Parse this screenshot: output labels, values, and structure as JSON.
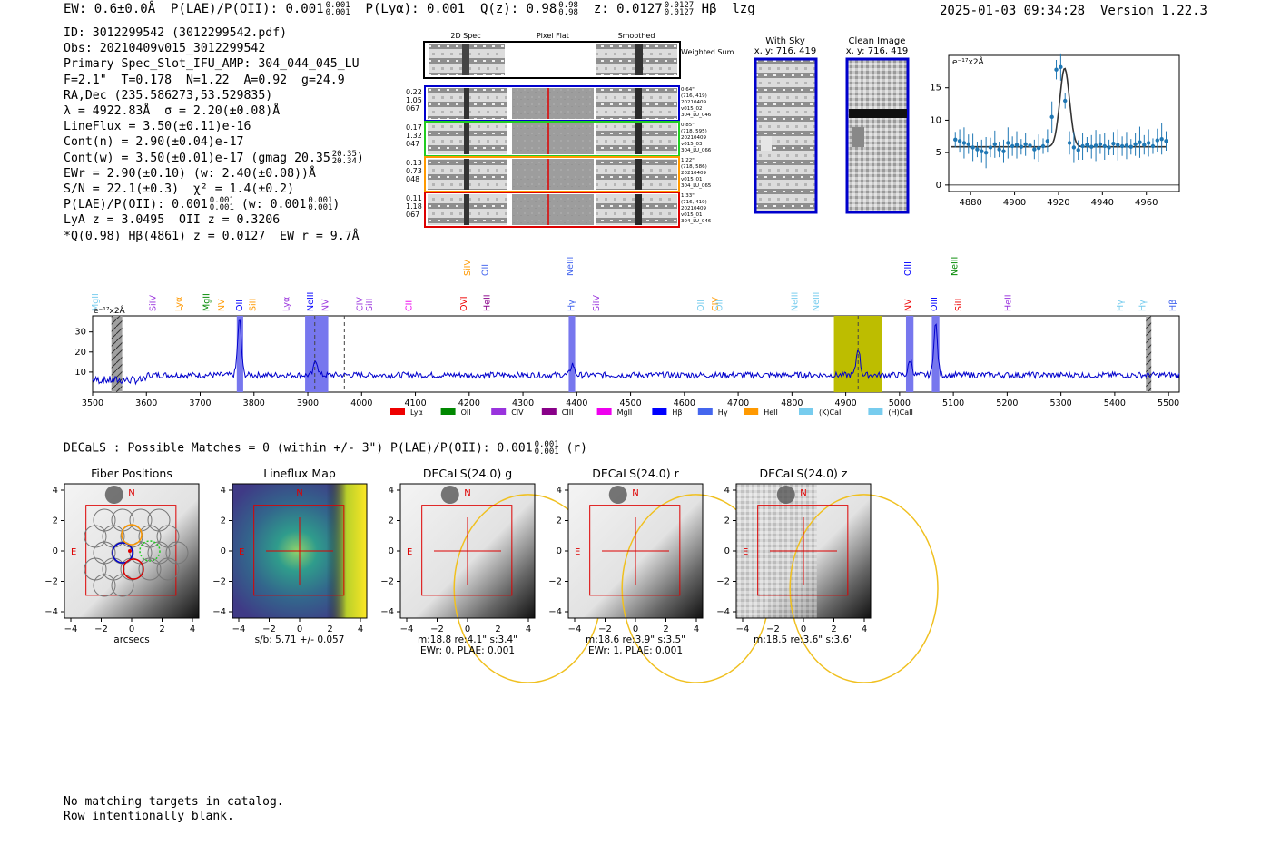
{
  "header": {
    "ew": "EW: 0.6±0.0Å",
    "plae_label": "P(LAE)/P(OII): 0.001",
    "plae_hi": "0.001",
    "plae_lo": "0.001",
    "plya": "P(Lyα): 0.001",
    "qz_label": "Q(z): 0.98",
    "qz_hi": "0.98",
    "qz_lo": "0.98",
    "z_label": "z: 0.0127",
    "z_hi": "0.0127",
    "z_lo": "0.0127",
    "line_name": "Hβ",
    "flag": "lzg",
    "timestamp": "2025-01-03 09:34:28",
    "version": "Version 1.22.3"
  },
  "info": {
    "id": "ID: 3012299542 (3012299542.pdf)",
    "obs": "Obs: 20210409v015_3012299542",
    "primary": "Primary Spec_Slot_IFU_AMP: 304_044_045_LU",
    "fwhm": "F=2.1\"  T=0.178  N=1.22  A=0.92  g=24.9",
    "radec": "RA,Dec (235.586273,53.529835)",
    "lambda": "λ = 4922.83Å  σ = 2.20(±0.08)Å",
    "lineflux": "LineFlux = 3.50(±0.11)e-16",
    "contn": "Cont(n) = 2.90(±0.04)e-17",
    "contw": "Cont(w) = 3.50(±0.01)e-17 (gmag 20.35",
    "contw_hi": "20.35",
    "contw_lo": "20.34",
    "contw_close": ")",
    "ewr": "EWr = 2.90(±0.10) (w: 2.40(±0.08))Å",
    "sn": "S/N = 22.1(±0.3)  χ² = 1.4(±0.2)",
    "plae": "P(LAE)/P(OII): 0.001",
    "plae_hi": "0.001",
    "plae_lo": "0.001",
    "plae_w": "(w: 0.001",
    "plae_w_hi": "0.001",
    "plae_w_lo": "0.001",
    "plae_w_close": ")",
    "lya": "LyA z = 3.0495  OII z = 0.3206",
    "q": "*Q(0.98) Hβ(4861) z = 0.0127  EW r = 9.7Å"
  },
  "cutouts": {
    "col_labels": [
      "2D Spec",
      "Pixel Flat",
      "Smoothed"
    ],
    "weighted_sum": "Weighted Sum",
    "rows": [
      {
        "stats": [
          "0.22",
          "1.05",
          "067"
        ],
        "side": [
          "0.64\"",
          "(716, 419)",
          "20210409",
          "v015_02",
          "304_LU_046"
        ],
        "color": "#0000cc"
      },
      {
        "stats": [
          "0.17",
          "1.32",
          "047"
        ],
        "side": [
          "0.85\"",
          "(718, 595)",
          "20210409",
          "v015_03",
          "304_LU_066"
        ],
        "color": "#22cc22"
      },
      {
        "stats": [
          "0.13",
          "0.73",
          "048"
        ],
        "side": [
          "1.22\"",
          "(718, 586)",
          "20210409",
          "v015_01",
          "304_LU_065"
        ],
        "color": "#ff9900"
      },
      {
        "stats": [
          "0.11",
          "1.18",
          "067"
        ],
        "side": [
          "1.33\"",
          "(716, 419)",
          "20210409",
          "v015_01",
          "304_LU_046"
        ],
        "color": "#dd0000"
      }
    ],
    "with_sky_title": "With Sky",
    "with_sky_xy": "x, y: 716, 419",
    "clean_title": "Clean Image",
    "clean_xy": "x, y: 716, 419"
  },
  "zoom_chart": {
    "unit": "e⁻¹⁷x2Å",
    "xticks": [
      "4880",
      "4900",
      "4920",
      "4940",
      "4960"
    ],
    "yticks": [
      "0",
      "5",
      "10",
      "15"
    ]
  },
  "spectrum": {
    "unit": "e⁻¹⁷x2Å",
    "xticks": [
      "3500",
      "3600",
      "3700",
      "3800",
      "3900",
      "4000",
      "4100",
      "4200",
      "4300",
      "4400",
      "4500",
      "4600",
      "4700",
      "4800",
      "4900",
      "5000",
      "5100",
      "5200",
      "5300",
      "5400",
      "5500"
    ],
    "yticks": [
      "10",
      "20",
      "30"
    ],
    "legend": [
      {
        "label": "Lyα",
        "color": "#ee0000"
      },
      {
        "label": "OII",
        "color": "#008800"
      },
      {
        "label": "CIV",
        "color": "#9933dd"
      },
      {
        "label": "CIII",
        "color": "#880088"
      },
      {
        "label": "MgII",
        "color": "#ee00ee"
      },
      {
        "label": "Hβ",
        "color": "#0000ff"
      },
      {
        "label": "Hγ",
        "color": "#4466ee"
      },
      {
        "label": "HeII",
        "color": "#ff9900"
      },
      {
        "label": "(K)CaII",
        "color": "#77ccee"
      },
      {
        "label": "(H)CaII",
        "color": "#77ccee"
      }
    ],
    "line_labels": [
      {
        "text": "MgII",
        "w": 3505,
        "color": "#77ccee",
        "row": 0
      },
      {
        "text": "SiIV",
        "w": 3612,
        "color": "#9933dd",
        "row": 0
      },
      {
        "text": "Lyα",
        "w": 3660,
        "color": "#ff9900",
        "row": 0
      },
      {
        "text": "MgII",
        "w": 3712,
        "color": "#008800",
        "row": 0
      },
      {
        "text": "NV",
        "w": 3740,
        "color": "#ff9900",
        "row": 0
      },
      {
        "text": "OII",
        "w": 3773,
        "color": "#0000ff",
        "row": 0
      },
      {
        "text": "SiII",
        "w": 3798,
        "color": "#ff9900",
        "row": 0
      },
      {
        "text": "Lyα",
        "w": 3860,
        "color": "#9933dd",
        "row": 0
      },
      {
        "text": "NeIII",
        "w": 3905,
        "color": "#0000ff",
        "row": 0
      },
      {
        "text": "NV",
        "w": 3933,
        "color": "#9933dd",
        "row": 0
      },
      {
        "text": "CIV",
        "w": 3997,
        "color": "#9933dd",
        "row": 0
      },
      {
        "text": "SiII",
        "w": 4015,
        "color": "#9933dd",
        "row": 0
      },
      {
        "text": "CII",
        "w": 4088,
        "color": "#ee00ee",
        "row": 0
      },
      {
        "text": "SiIV",
        "w": 4197,
        "color": "#ff9900",
        "row": 1
      },
      {
        "text": "OVI",
        "w": 4190,
        "color": "#ee0000",
        "row": 0
      },
      {
        "text": "OII",
        "w": 4230,
        "color": "#4466ee",
        "row": 1
      },
      {
        "text": "HeII",
        "w": 4233,
        "color": "#880088",
        "row": 0
      },
      {
        "text": "NeIII",
        "w": 4388,
        "color": "#4466ee",
        "row": 1
      },
      {
        "text": "Hγ",
        "w": 4390,
        "color": "#4466ee",
        "row": 0
      },
      {
        "text": "SiIV",
        "w": 4437,
        "color": "#9933dd",
        "row": 0
      },
      {
        "text": "OII",
        "w": 4631,
        "color": "#77ccee",
        "row": 0
      },
      {
        "text": "CIV",
        "w": 4658,
        "color": "#ff9900",
        "row": 0
      },
      {
        "text": "OII",
        "w": 4665,
        "color": "#77ccee",
        "row": 0
      },
      {
        "text": "NeIII",
        "w": 4805,
        "color": "#77ccee",
        "row": 0
      },
      {
        "text": "NeIII",
        "w": 4845,
        "color": "#77ccee",
        "row": 0
      },
      {
        "text": "NV",
        "w": 5016,
        "color": "#ee0000",
        "row": 0
      },
      {
        "text": "OIII",
        "w": 5015,
        "color": "#0000ff",
        "row": 1
      },
      {
        "text": "OIII",
        "w": 5064,
        "color": "#0000ff",
        "row": 0
      },
      {
        "text": "NeIII",
        "w": 5102,
        "color": "#008800",
        "row": 1
      },
      {
        "text": "SiII",
        "w": 5110,
        "color": "#ee0000",
        "row": 0
      },
      {
        "text": "HeII",
        "w": 5202,
        "color": "#9933dd",
        "row": 0
      },
      {
        "text": "Hγ",
        "w": 5410,
        "color": "#77ccee",
        "row": 0
      },
      {
        "text": "Hγ",
        "w": 5452,
        "color": "#77ccee",
        "row": 0
      },
      {
        "text": "Hβ",
        "w": 5508,
        "color": "#4466ee",
        "row": 0
      }
    ]
  },
  "decals": {
    "summary": "DECaLS : Possible Matches = 0 (within +/- 3\")  P(LAE)/P(OII): 0.001",
    "summary_hi": "0.001",
    "summary_lo": "0.001",
    "summary_band": "(r)",
    "panels": [
      {
        "title": "Fiber Positions",
        "caption1": "arcsecs",
        "caption2": ""
      },
      {
        "title": "Lineflux Map",
        "caption1": "s/b: 5.71 +/- 0.057",
        "caption2": ""
      },
      {
        "title": "DECaLS(24.0) g",
        "caption1": "m:18.8  re:4.1\"  s:3.4\"",
        "caption2": "EWr: 0, PLAE: 0.001"
      },
      {
        "title": "DECaLS(24.0) r",
        "caption1": "m:18.6  re:3.9\"  s:3.5\"",
        "caption2": "EWr: 1, PLAE: 0.001"
      },
      {
        "title": "DECaLS(24.0) z",
        "caption1": "m:18.5  re:3.6\"  s:3.6\"",
        "caption2": ""
      }
    ],
    "north": "N",
    "east": "E",
    "ticks": [
      "−4",
      "−2",
      "0",
      "2",
      "4"
    ]
  },
  "footer": {
    "line1": "No matching targets in catalog.",
    "line2": "Row intentionally blank."
  },
  "chart_data": [
    {
      "type": "scatter",
      "x": [
        4873,
        4875,
        4877,
        4879,
        4881,
        4883,
        4885,
        4887,
        4889,
        4891,
        4893,
        4895,
        4897,
        4899,
        4901,
        4903,
        4905,
        4907,
        4909,
        4911,
        4913,
        4915,
        4917,
        4919,
        4921,
        4923,
        4925,
        4927,
        4929,
        4931,
        4933,
        4935,
        4937,
        4939,
        4941,
        4943,
        4945,
        4947,
        4949,
        4951,
        4953,
        4955,
        4957,
        4959,
        4961,
        4963,
        4965,
        4967,
        4969
      ],
      "values": [
        7.0,
        6.8,
        6.5,
        6.3,
        5.8,
        5.5,
        5.2,
        5.0,
        5.8,
        6.3,
        5.5,
        5.2,
        6.5,
        6.0,
        6.2,
        5.9,
        6.3,
        6.1,
        5.5,
        5.7,
        6.0,
        6.8,
        10.5,
        17.8,
        18.2,
        13.0,
        6.5,
        5.8,
        5.4,
        6.0,
        6.2,
        5.9,
        6.1,
        6.3,
        6.0,
        5.8,
        6.4,
        6.2,
        6.0,
        6.1,
        5.9,
        6.3,
        6.6,
        6.2,
        6.5,
        6.0,
        6.9,
        7.1,
        6.8
      ],
      "xlim": [
        4870,
        4975
      ],
      "ylim": [
        -1,
        20
      ],
      "fit_peak": 18.0,
      "fit_center": 4922.8,
      "fit_continuum": 5.9
    },
    {
      "type": "line",
      "x_range": [
        3500,
        5520
      ],
      "ylim": [
        0,
        38
      ],
      "continuum": 8.5,
      "emission_lines": [
        {
          "w": 3773,
          "peak": 36
        },
        {
          "w": 3915,
          "peak": 16
        },
        {
          "w": 4392,
          "peak": 14
        },
        {
          "w": 4923,
          "peak": 22
        },
        {
          "w": 5020,
          "peak": 16
        },
        {
          "w": 5067,
          "peak": 34
        }
      ],
      "shaded_blue": [
        [
          3768,
          3780
        ],
        [
          3895,
          3938
        ],
        [
          4385,
          4397
        ],
        [
          5012,
          5026
        ],
        [
          5060,
          5074
        ]
      ],
      "shaded_olive": [
        [
          4878,
          4968
        ]
      ],
      "shaded_gray": [
        [
          3535,
          3555
        ],
        [
          5458,
          5468
        ]
      ],
      "dashed_lines": [
        3913,
        3968,
        4923
      ]
    }
  ]
}
